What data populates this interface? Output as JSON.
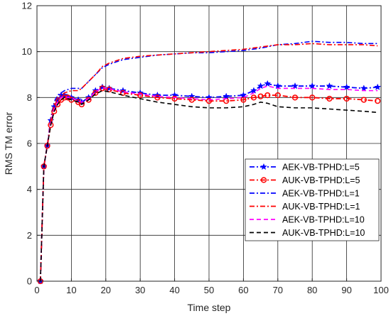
{
  "chart_data": {
    "type": "line",
    "xlabel": "Time step",
    "ylabel": "RMS TM error",
    "xlim": [
      0,
      100
    ],
    "ylim": [
      0,
      12
    ],
    "xticks": [
      "0",
      "10",
      "20",
      "30",
      "40",
      "50",
      "60",
      "70",
      "80",
      "90",
      "100"
    ],
    "yticks": [
      "0",
      "2",
      "4",
      "6",
      "8",
      "10",
      "12"
    ],
    "grid": true,
    "legend_position": "lower-right",
    "series": [
      {
        "name": "AEK-VB-TPHD:L=5",
        "color": "#0000ff",
        "dash": "dash-dot",
        "marker": "star",
        "x": [
          1,
          2,
          3,
          4,
          5,
          6,
          7,
          8,
          9,
          10,
          12,
          13,
          15,
          17,
          19,
          21,
          25,
          30,
          35,
          40,
          45,
          50,
          55,
          60,
          63,
          65,
          67,
          70,
          75,
          80,
          85,
          90,
          95,
          99
        ],
        "y": [
          0,
          5,
          5.9,
          7.0,
          7.6,
          7.9,
          8.1,
          8.1,
          8.0,
          8.0,
          7.9,
          7.8,
          8.0,
          8.3,
          8.45,
          8.4,
          8.3,
          8.2,
          8.1,
          8.1,
          8.05,
          8.0,
          8.05,
          8.1,
          8.3,
          8.5,
          8.6,
          8.5,
          8.5,
          8.5,
          8.5,
          8.45,
          8.4,
          8.45
        ]
      },
      {
        "name": "AUK-VB-TPHD:L=5",
        "color": "#ff0000",
        "dash": "dash-dot",
        "marker": "circle",
        "x": [
          1,
          2,
          3,
          4,
          5,
          6,
          7,
          8,
          9,
          10,
          12,
          13,
          15,
          17,
          19,
          21,
          25,
          30,
          35,
          40,
          45,
          50,
          55,
          60,
          63,
          65,
          67,
          70,
          75,
          80,
          85,
          90,
          95,
          99
        ],
        "y": [
          0,
          5,
          5.9,
          6.8,
          7.4,
          7.7,
          7.9,
          8.0,
          8.0,
          7.9,
          7.8,
          7.7,
          7.9,
          8.2,
          8.4,
          8.35,
          8.2,
          8.1,
          8.0,
          7.95,
          7.9,
          7.85,
          7.85,
          7.9,
          8.0,
          8.05,
          8.1,
          8.1,
          8.0,
          8.0,
          7.95,
          7.95,
          7.9,
          7.85
        ]
      },
      {
        "name": "AEK-VB-TPHD:L=1",
        "color": "#0000ff",
        "dash": "dash-dot",
        "marker": "none",
        "x": [
          1,
          2,
          3,
          4,
          5,
          6,
          8,
          10,
          12,
          13,
          15,
          17,
          19,
          21,
          25,
          30,
          35,
          40,
          45,
          50,
          55,
          60,
          65,
          70,
          75,
          80,
          85,
          90,
          95,
          99
        ],
        "y": [
          0,
          5,
          5.9,
          7.1,
          7.8,
          8.1,
          8.3,
          8.4,
          8.4,
          8.4,
          8.7,
          9.0,
          9.3,
          9.45,
          9.65,
          9.75,
          9.85,
          9.9,
          9.95,
          9.95,
          10.0,
          10.05,
          10.15,
          10.3,
          10.35,
          10.45,
          10.4,
          10.4,
          10.35,
          10.35
        ]
      },
      {
        "name": "AUK-VB-TPHD:L=1",
        "color": "#ff0000",
        "dash": "dash-dot",
        "marker": "none",
        "x": [
          1,
          2,
          3,
          4,
          5,
          6,
          8,
          10,
          12,
          13,
          15,
          17,
          19,
          21,
          25,
          30,
          35,
          40,
          45,
          50,
          55,
          60,
          65,
          70,
          75,
          80,
          85,
          90,
          95,
          99
        ],
        "y": [
          0,
          5,
          5.9,
          7.0,
          7.7,
          8.0,
          8.2,
          8.3,
          8.3,
          8.4,
          8.7,
          9.0,
          9.35,
          9.5,
          9.7,
          9.8,
          9.85,
          9.9,
          9.95,
          10.0,
          10.05,
          10.1,
          10.2,
          10.3,
          10.3,
          10.35,
          10.3,
          10.3,
          10.3,
          10.25
        ]
      },
      {
        "name": "AEK-VB-TPHD:L=10",
        "color": "#ff00ff",
        "dash": "dash",
        "marker": "none",
        "x": [
          1,
          2,
          3,
          4,
          5,
          6,
          7,
          8,
          9,
          10,
          12,
          13,
          15,
          17,
          19,
          21,
          25,
          30,
          35,
          40,
          45,
          50,
          55,
          60,
          63,
          65,
          67,
          70,
          75,
          80,
          85,
          90,
          95,
          99
        ],
        "y": [
          0,
          5,
          5.9,
          6.9,
          7.5,
          7.8,
          8.0,
          8.05,
          8.0,
          8.0,
          7.85,
          7.8,
          7.95,
          8.25,
          8.42,
          8.38,
          8.25,
          8.15,
          8.05,
          8.0,
          7.95,
          7.9,
          7.95,
          8.0,
          8.2,
          8.4,
          8.5,
          8.4,
          8.4,
          8.4,
          8.35,
          8.35,
          8.3,
          8.3
        ]
      },
      {
        "name": "AUK-VB-TPHD:L=10",
        "color": "#000000",
        "dash": "dash",
        "marker": "none",
        "x": [
          1,
          2,
          3,
          4,
          5,
          6,
          7,
          8,
          9,
          10,
          12,
          13,
          15,
          17,
          19,
          21,
          25,
          30,
          35,
          40,
          45,
          50,
          55,
          60,
          63,
          65,
          67,
          70,
          75,
          80,
          85,
          90,
          95,
          99
        ],
        "y": [
          0,
          5,
          5.9,
          6.8,
          7.4,
          7.7,
          7.9,
          8.0,
          7.95,
          7.9,
          7.8,
          7.7,
          7.9,
          8.15,
          8.3,
          8.25,
          8.1,
          7.95,
          7.8,
          7.7,
          7.6,
          7.55,
          7.55,
          7.6,
          7.7,
          7.8,
          7.75,
          7.6,
          7.55,
          7.55,
          7.5,
          7.45,
          7.4,
          7.35
        ]
      }
    ]
  }
}
